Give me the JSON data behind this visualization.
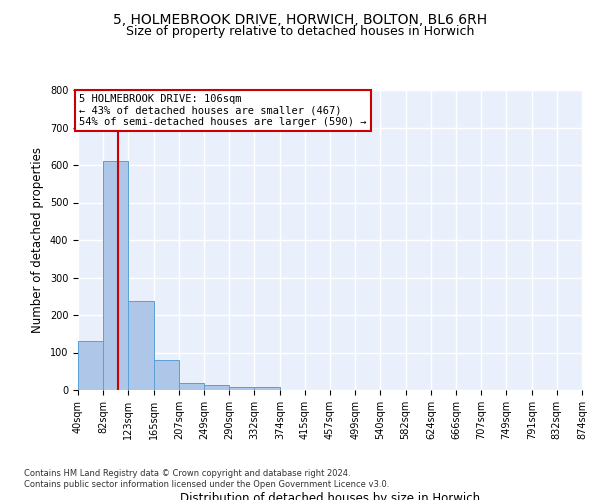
{
  "title": "5, HOLMEBROOK DRIVE, HORWICH, BOLTON, BL6 6RH",
  "subtitle": "Size of property relative to detached houses in Horwich",
  "xlabel": "Distribution of detached houses by size in Horwich",
  "ylabel": "Number of detached properties",
  "footnote1": "Contains HM Land Registry data © Crown copyright and database right 2024.",
  "footnote2": "Contains public sector information licensed under the Open Government Licence v3.0.",
  "bin_edges": [
    40,
    82,
    123,
    165,
    207,
    249,
    290,
    332,
    374,
    415,
    457,
    499,
    540,
    582,
    624,
    666,
    707,
    749,
    791,
    832,
    874
  ],
  "bar_heights": [
    130,
    610,
    238,
    80,
    20,
    13,
    9,
    9,
    0,
    0,
    0,
    0,
    0,
    0,
    0,
    0,
    0,
    0,
    0,
    0
  ],
  "bar_color": "#aec6e8",
  "bar_edgecolor": "#5a9fd4",
  "property_size": 106,
  "vline_color": "#cc0000",
  "annotation_line1": "5 HOLMEBROOK DRIVE: 106sqm",
  "annotation_line2": "← 43% of detached houses are smaller (467)",
  "annotation_line3": "54% of semi-detached houses are larger (590) →",
  "annotation_box_edgecolor": "#cc0000",
  "annotation_box_facecolor": "#ffffff",
  "ylim": [
    0,
    800
  ],
  "yticks": [
    0,
    100,
    200,
    300,
    400,
    500,
    600,
    700,
    800
  ],
  "background_color": "#eaf0fb",
  "grid_color": "#ffffff",
  "title_fontsize": 10,
  "subtitle_fontsize": 9,
  "tick_label_fontsize": 7,
  "ylabel_fontsize": 8.5,
  "xlabel_fontsize": 8.5,
  "annotation_fontsize": 7.5,
  "footnote_fontsize": 6
}
